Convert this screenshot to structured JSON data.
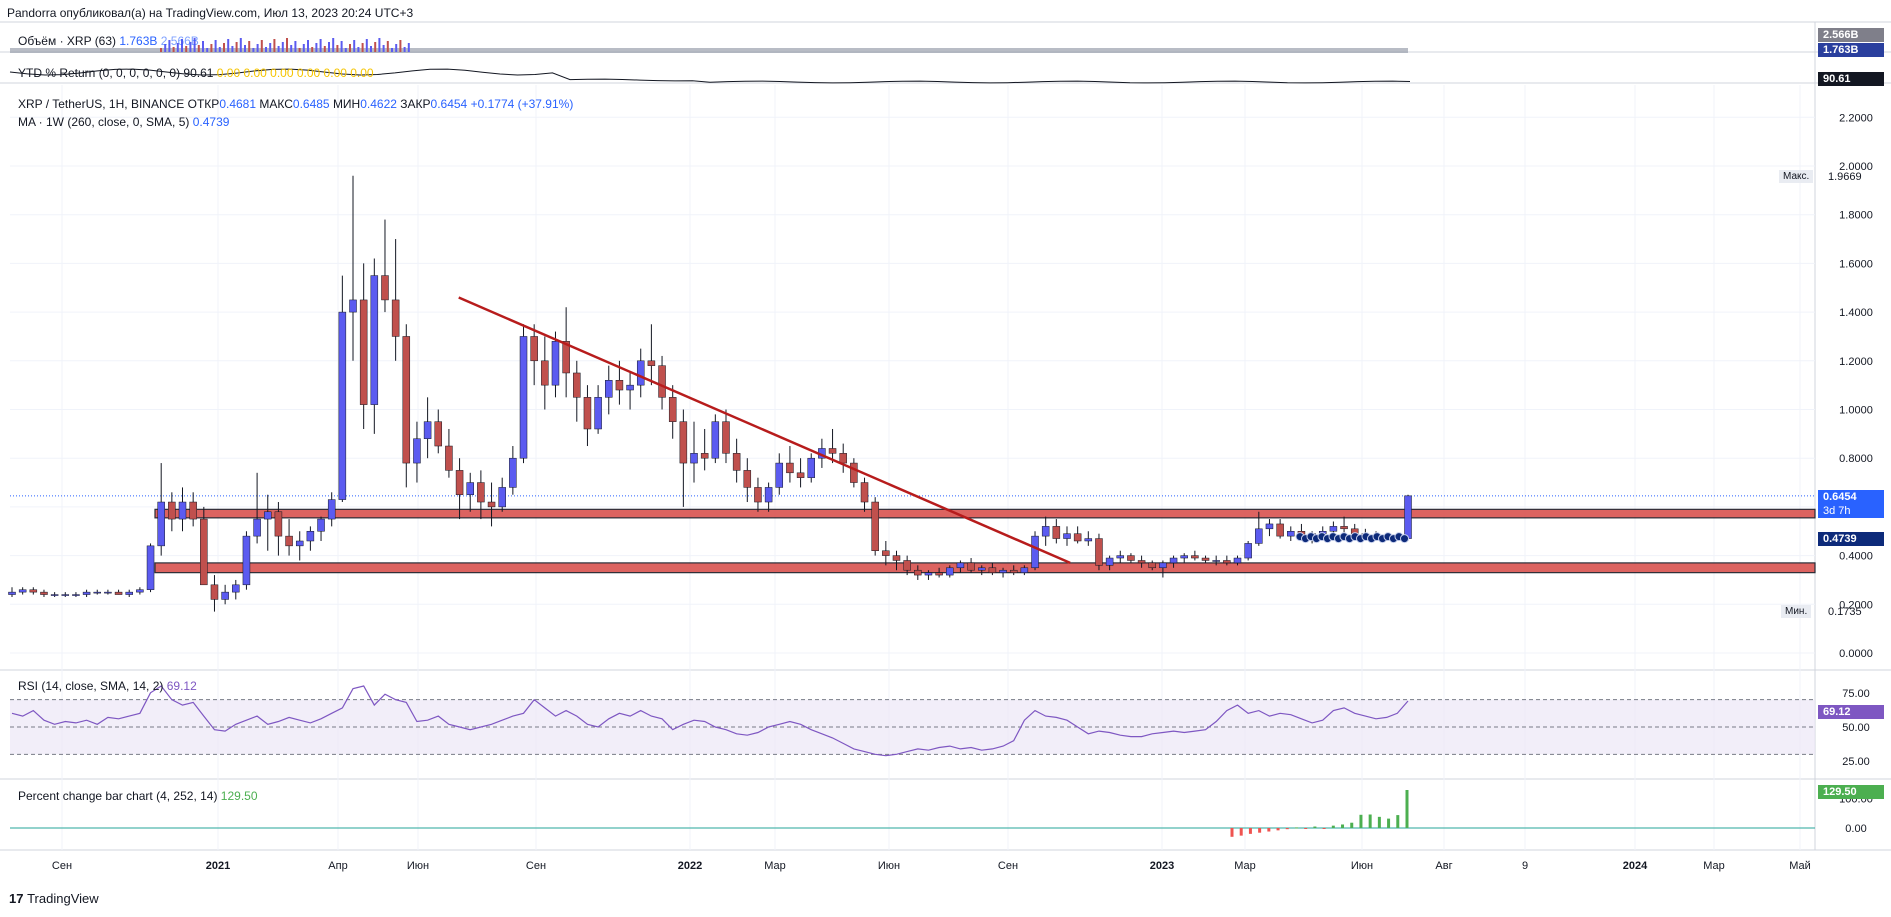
{
  "header": {
    "publisher_line": "Pandorra опубликовал(а) на TradingView.com, Июл 13, 2023 20:24 UTC+3"
  },
  "footer": {
    "brand": "TradingView",
    "logo_text": "17"
  },
  "panes": {
    "volume": {
      "title": "Объём · XRP (63)",
      "value1": "1.763B",
      "value2": "2.566B",
      "axis_tag_top": "2.566B",
      "axis_tag_bottom": "1.763B"
    },
    "ytd": {
      "title": "YTD % Return (0, 0, 0, 0, 0, 0)",
      "value": "90.61",
      "extra": "0.00  0.00  0.00  0.00  0.00  0.00",
      "axis_tag": "90.61"
    },
    "price": {
      "title_symbol": "XRP / TetherUS, 1H, BINANCE",
      "open_label": "ОТКР",
      "open": "0.4681",
      "high_label": "МАКС",
      "high": "0.6485",
      "low_label": "МИН",
      "low": "0.4622",
      "close_label": "ЗАКР",
      "close": "0.6454",
      "change": "+0.1774 (+37.91%)",
      "ma_title": "MA · 1W (260, close, 0, SMA, 5)",
      "ma_value": "0.4739",
      "max_label": "Макс.",
      "max_value": "1.9669",
      "min_label": "Мин.",
      "min_value": "0.1735",
      "last_tag": "0.6454",
      "countdown": "3d 7h",
      "ma_tag": "0.4739"
    },
    "rsi": {
      "title": "RSI (14, close, SMA, 14, 2)",
      "value": "69.12",
      "axis_tag": "69.12"
    },
    "pcb": {
      "title": "Percent change bar chart (4, 252, 14)",
      "value": "129.50",
      "axis_tag": "129.50"
    }
  },
  "colors": {
    "up": "#5b5bf0",
    "down": "#c0504d",
    "trendline": "#b71c1c",
    "rsi": "#7e57c2",
    "grid": "#f0f3fa"
  },
  "chart_data": [
    {
      "type": "candlestick",
      "title": "XRP / TetherUS, 1H, BINANCE",
      "x_ticks": [
        "Сен",
        "2021",
        "Апр",
        "Июн",
        "Сен",
        "2022",
        "Мар",
        "Июн",
        "Сен",
        "2023",
        "Мар",
        "Июн",
        "Авг",
        "9",
        "2024",
        "Мар",
        "Май"
      ],
      "y_ticks": [
        "0.0000",
        "0.2000",
        "0.4000",
        "0.6000",
        "0.8000",
        "1.0000",
        "1.2000",
        "1.4000",
        "1.6000",
        "1.8000",
        "2.0000",
        "2.2000"
      ],
      "ylim": [
        0,
        2.2
      ],
      "candles": [
        [
          0.24,
          0.27,
          0.23,
          0.25
        ],
        [
          0.25,
          0.27,
          0.24,
          0.26
        ],
        [
          0.26,
          0.27,
          0.24,
          0.25
        ],
        [
          0.25,
          0.26,
          0.23,
          0.24
        ],
        [
          0.24,
          0.25,
          0.23,
          0.24
        ],
        [
          0.24,
          0.25,
          0.23,
          0.24
        ],
        [
          0.24,
          0.25,
          0.23,
          0.24
        ],
        [
          0.24,
          0.26,
          0.23,
          0.25
        ],
        [
          0.25,
          0.26,
          0.24,
          0.25
        ],
        [
          0.25,
          0.26,
          0.24,
          0.25
        ],
        [
          0.25,
          0.26,
          0.24,
          0.24
        ],
        [
          0.24,
          0.26,
          0.23,
          0.25
        ],
        [
          0.25,
          0.27,
          0.24,
          0.26
        ],
        [
          0.26,
          0.45,
          0.25,
          0.44
        ],
        [
          0.44,
          0.78,
          0.4,
          0.62
        ],
        [
          0.62,
          0.66,
          0.5,
          0.55
        ],
        [
          0.55,
          0.68,
          0.5,
          0.62
        ],
        [
          0.62,
          0.66,
          0.52,
          0.55
        ],
        [
          0.55,
          0.6,
          0.3,
          0.28
        ],
        [
          0.28,
          0.32,
          0.17,
          0.22
        ],
        [
          0.22,
          0.28,
          0.2,
          0.25
        ],
        [
          0.25,
          0.3,
          0.22,
          0.28
        ],
        [
          0.28,
          0.5,
          0.26,
          0.48
        ],
        [
          0.48,
          0.74,
          0.45,
          0.55
        ],
        [
          0.55,
          0.65,
          0.42,
          0.58
        ],
        [
          0.58,
          0.62,
          0.4,
          0.48
        ],
        [
          0.48,
          0.55,
          0.4,
          0.44
        ],
        [
          0.44,
          0.5,
          0.38,
          0.46
        ],
        [
          0.46,
          0.52,
          0.42,
          0.5
        ],
        [
          0.5,
          0.56,
          0.46,
          0.55
        ],
        [
          0.55,
          0.66,
          0.52,
          0.63
        ],
        [
          0.63,
          1.55,
          0.62,
          1.4
        ],
        [
          1.4,
          1.96,
          1.2,
          1.45
        ],
        [
          1.45,
          1.6,
          0.92,
          1.02
        ],
        [
          1.02,
          1.62,
          0.9,
          1.55
        ],
        [
          1.55,
          1.78,
          1.4,
          1.45
        ],
        [
          1.45,
          1.7,
          1.2,
          1.3
        ],
        [
          1.3,
          1.35,
          0.68,
          0.78
        ],
        [
          0.78,
          0.95,
          0.7,
          0.88
        ],
        [
          0.88,
          1.05,
          0.8,
          0.95
        ],
        [
          0.95,
          1.0,
          0.82,
          0.85
        ],
        [
          0.85,
          0.92,
          0.72,
          0.75
        ],
        [
          0.75,
          0.8,
          0.55,
          0.65
        ],
        [
          0.65,
          0.74,
          0.58,
          0.7
        ],
        [
          0.7,
          0.75,
          0.55,
          0.62
        ],
        [
          0.62,
          0.7,
          0.52,
          0.6
        ],
        [
          0.6,
          0.72,
          0.58,
          0.68
        ],
        [
          0.68,
          0.85,
          0.65,
          0.8
        ],
        [
          0.8,
          1.35,
          0.78,
          1.3
        ],
        [
          1.3,
          1.35,
          1.1,
          1.2
        ],
        [
          1.2,
          1.3,
          1.0,
          1.1
        ],
        [
          1.1,
          1.32,
          1.05,
          1.28
        ],
        [
          1.28,
          1.42,
          1.05,
          1.15
        ],
        [
          1.15,
          1.2,
          0.95,
          1.05
        ],
        [
          1.05,
          1.1,
          0.85,
          0.92
        ],
        [
          0.92,
          1.1,
          0.9,
          1.05
        ],
        [
          1.05,
          1.18,
          0.98,
          1.12
        ],
        [
          1.12,
          1.2,
          1.02,
          1.08
        ],
        [
          1.08,
          1.15,
          1.0,
          1.1
        ],
        [
          1.1,
          1.25,
          1.05,
          1.2
        ],
        [
          1.2,
          1.35,
          1.1,
          1.18
        ],
        [
          1.18,
          1.22,
          1.0,
          1.05
        ],
        [
          1.05,
          1.1,
          0.88,
          0.95
        ],
        [
          0.95,
          1.0,
          0.6,
          0.78
        ],
        [
          0.78,
          0.95,
          0.7,
          0.82
        ],
        [
          0.82,
          0.92,
          0.75,
          0.8
        ],
        [
          0.8,
          0.98,
          0.78,
          0.95
        ],
        [
          0.95,
          1.0,
          0.78,
          0.82
        ],
        [
          0.82,
          0.88,
          0.7,
          0.75
        ],
        [
          0.75,
          0.8,
          0.62,
          0.68
        ],
        [
          0.68,
          0.72,
          0.58,
          0.62
        ],
        [
          0.62,
          0.7,
          0.58,
          0.68
        ],
        [
          0.68,
          0.82,
          0.65,
          0.78
        ],
        [
          0.78,
          0.85,
          0.7,
          0.74
        ],
        [
          0.74,
          0.8,
          0.68,
          0.72
        ],
        [
          0.72,
          0.82,
          0.7,
          0.8
        ],
        [
          0.8,
          0.88,
          0.76,
          0.84
        ],
        [
          0.84,
          0.92,
          0.78,
          0.82
        ],
        [
          0.82,
          0.86,
          0.74,
          0.78
        ],
        [
          0.78,
          0.8,
          0.68,
          0.7
        ],
        [
          0.7,
          0.72,
          0.58,
          0.62
        ],
        [
          0.62,
          0.64,
          0.4,
          0.42
        ],
        [
          0.42,
          0.46,
          0.36,
          0.4
        ],
        [
          0.4,
          0.42,
          0.34,
          0.38
        ],
        [
          0.38,
          0.4,
          0.32,
          0.34
        ],
        [
          0.34,
          0.36,
          0.3,
          0.32
        ],
        [
          0.32,
          0.34,
          0.3,
          0.33
        ],
        [
          0.33,
          0.35,
          0.31,
          0.32
        ],
        [
          0.32,
          0.36,
          0.31,
          0.35
        ],
        [
          0.35,
          0.38,
          0.33,
          0.37
        ],
        [
          0.37,
          0.39,
          0.33,
          0.34
        ],
        [
          0.34,
          0.36,
          0.32,
          0.35
        ],
        [
          0.35,
          0.37,
          0.32,
          0.33
        ],
        [
          0.33,
          0.35,
          0.31,
          0.34
        ],
        [
          0.34,
          0.36,
          0.32,
          0.33
        ],
        [
          0.33,
          0.36,
          0.32,
          0.35
        ],
        [
          0.35,
          0.5,
          0.34,
          0.48
        ],
        [
          0.48,
          0.56,
          0.44,
          0.52
        ],
        [
          0.52,
          0.55,
          0.45,
          0.47
        ],
        [
          0.47,
          0.52,
          0.44,
          0.49
        ],
        [
          0.49,
          0.52,
          0.45,
          0.46
        ],
        [
          0.46,
          0.5,
          0.44,
          0.47
        ],
        [
          0.47,
          0.49,
          0.34,
          0.36
        ],
        [
          0.36,
          0.4,
          0.34,
          0.39
        ],
        [
          0.39,
          0.42,
          0.37,
          0.4
        ],
        [
          0.4,
          0.41,
          0.37,
          0.38
        ],
        [
          0.38,
          0.4,
          0.35,
          0.37
        ],
        [
          0.37,
          0.38,
          0.34,
          0.35
        ],
        [
          0.35,
          0.38,
          0.31,
          0.37
        ],
        [
          0.37,
          0.4,
          0.35,
          0.39
        ],
        [
          0.39,
          0.41,
          0.37,
          0.4
        ],
        [
          0.4,
          0.42,
          0.38,
          0.39
        ],
        [
          0.39,
          0.4,
          0.37,
          0.38
        ],
        [
          0.38,
          0.4,
          0.36,
          0.38
        ],
        [
          0.38,
          0.4,
          0.36,
          0.37
        ],
        [
          0.37,
          0.4,
          0.36,
          0.39
        ],
        [
          0.39,
          0.46,
          0.38,
          0.45
        ],
        [
          0.45,
          0.58,
          0.44,
          0.51
        ],
        [
          0.51,
          0.55,
          0.48,
          0.53
        ],
        [
          0.53,
          0.55,
          0.47,
          0.48
        ],
        [
          0.48,
          0.52,
          0.46,
          0.5
        ],
        [
          0.5,
          0.53,
          0.46,
          0.47
        ],
        [
          0.47,
          0.5,
          0.45,
          0.49
        ],
        [
          0.49,
          0.52,
          0.47,
          0.5
        ],
        [
          0.5,
          0.54,
          0.48,
          0.52
        ],
        [
          0.52,
          0.56,
          0.48,
          0.51
        ],
        [
          0.51,
          0.53,
          0.48,
          0.49
        ],
        [
          0.49,
          0.51,
          0.47,
          0.48
        ],
        [
          0.48,
          0.5,
          0.46,
          0.47
        ],
        [
          0.47,
          0.48,
          0.46,
          0.47
        ],
        [
          0.47,
          0.48,
          0.46,
          0.47
        ],
        [
          0.47,
          0.65,
          0.46,
          0.6454
        ]
      ],
      "ma_value": 0.4739,
      "support_zones": [
        [
          0.555,
          0.59
        ],
        [
          0.33,
          0.37
        ]
      ],
      "trendline": {
        "start": [
          0.32,
          1.46
        ],
        "end": [
          0.758,
          0.37
        ]
      }
    },
    {
      "type": "line",
      "title": "RSI (14, close, SMA, 14, 2)",
      "ylim": [
        20,
        80
      ],
      "y_ticks": [
        "25.00",
        "50.00",
        "75.00"
      ],
      "bands": [
        30,
        70
      ],
      "values": [
        60,
        58,
        62,
        55,
        52,
        54,
        53,
        55,
        52,
        57,
        56,
        58,
        60,
        75,
        80,
        70,
        66,
        68,
        58,
        48,
        47,
        52,
        55,
        58,
        52,
        54,
        57,
        55,
        53,
        56,
        60,
        64,
        78,
        80,
        66,
        74,
        70,
        68,
        54,
        55,
        58,
        52,
        50,
        48,
        50,
        52,
        55,
        58,
        60,
        70,
        64,
        58,
        62,
        58,
        52,
        50,
        56,
        60,
        58,
        62,
        58,
        56,
        48,
        52,
        55,
        54,
        50,
        48,
        45,
        44,
        46,
        50,
        52,
        54,
        52,
        48,
        45,
        42,
        38,
        34,
        32,
        30,
        29,
        30,
        32,
        34,
        33,
        35,
        36,
        34,
        35,
        33,
        34,
        36,
        40,
        55,
        62,
        58,
        57,
        55,
        50,
        45,
        47,
        46,
        44,
        43,
        43,
        45,
        46,
        47,
        46,
        47,
        48,
        54,
        62,
        66,
        60,
        62,
        58,
        60,
        59,
        56,
        53,
        55,
        62,
        64,
        60,
        58,
        56,
        57,
        60,
        69
      ],
      "current": 69.12
    },
    {
      "type": "bar",
      "title": "Percent change bar chart (4, 252, 14)",
      "y_ticks": [
        "0.00",
        "100.00"
      ],
      "values": [
        -30,
        -26,
        -20,
        -16,
        -12,
        -8,
        -4,
        2,
        -3,
        5,
        -2,
        8,
        12,
        18,
        45,
        46,
        38,
        32,
        44,
        129.5
      ],
      "current": 129.5
    }
  ]
}
